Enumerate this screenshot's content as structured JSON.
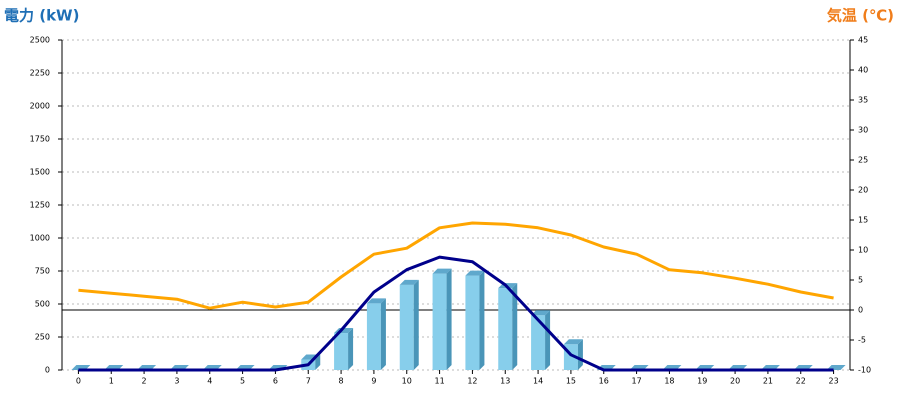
{
  "chart_data": {
    "type": "bar-line",
    "y_title": "電力 (kW)",
    "y2_title": "気温 (℃)",
    "categories": [
      "0",
      "1",
      "2",
      "3",
      "4",
      "5",
      "6",
      "7",
      "8",
      "9",
      "10",
      "11",
      "12",
      "13",
      "14",
      "15",
      "16",
      "17",
      "18",
      "19",
      "20",
      "21",
      "22",
      "23"
    ],
    "series": [
      {
        "type": "bar",
        "color": "#87ceeb",
        "values": [
          0,
          0,
          0,
          0,
          0,
          0,
          0,
          80,
          280,
          505,
          645,
          730,
          715,
          620,
          415,
          195,
          0,
          0,
          0,
          0,
          0,
          0,
          0,
          0
        ]
      },
      {
        "type": "line",
        "color": "#00008b",
        "values": [
          0,
          0,
          0,
          0,
          0,
          0,
          0,
          40,
          300,
          590,
          760,
          855,
          820,
          645,
          380,
          115,
          0,
          0,
          0,
          0,
          0,
          0,
          0,
          0
        ]
      },
      {
        "type": "line",
        "axis": "y2",
        "color": "#ffa500",
        "values": [
          3.3,
          2.8,
          2.3,
          1.8,
          0.3,
          1.3,
          0.5,
          1.3,
          5.5,
          9.3,
          10.3,
          13.7,
          14.5,
          14.3,
          13.7,
          12.5,
          10.5,
          9.3,
          6.7,
          6.2,
          5.3,
          4.3,
          3,
          2
        ]
      }
    ],
    "ylim": [
      0,
      2500
    ],
    "yticks": [
      0,
      250,
      500,
      750,
      1000,
      1250,
      1500,
      1750,
      2000,
      2250,
      2500
    ],
    "y2lim": [
      -10,
      45
    ],
    "y2ticks": [
      -10,
      -5,
      0,
      5,
      10,
      15,
      20,
      25,
      30,
      35,
      40,
      45
    ],
    "y2_refline": 0,
    "grid": true
  }
}
